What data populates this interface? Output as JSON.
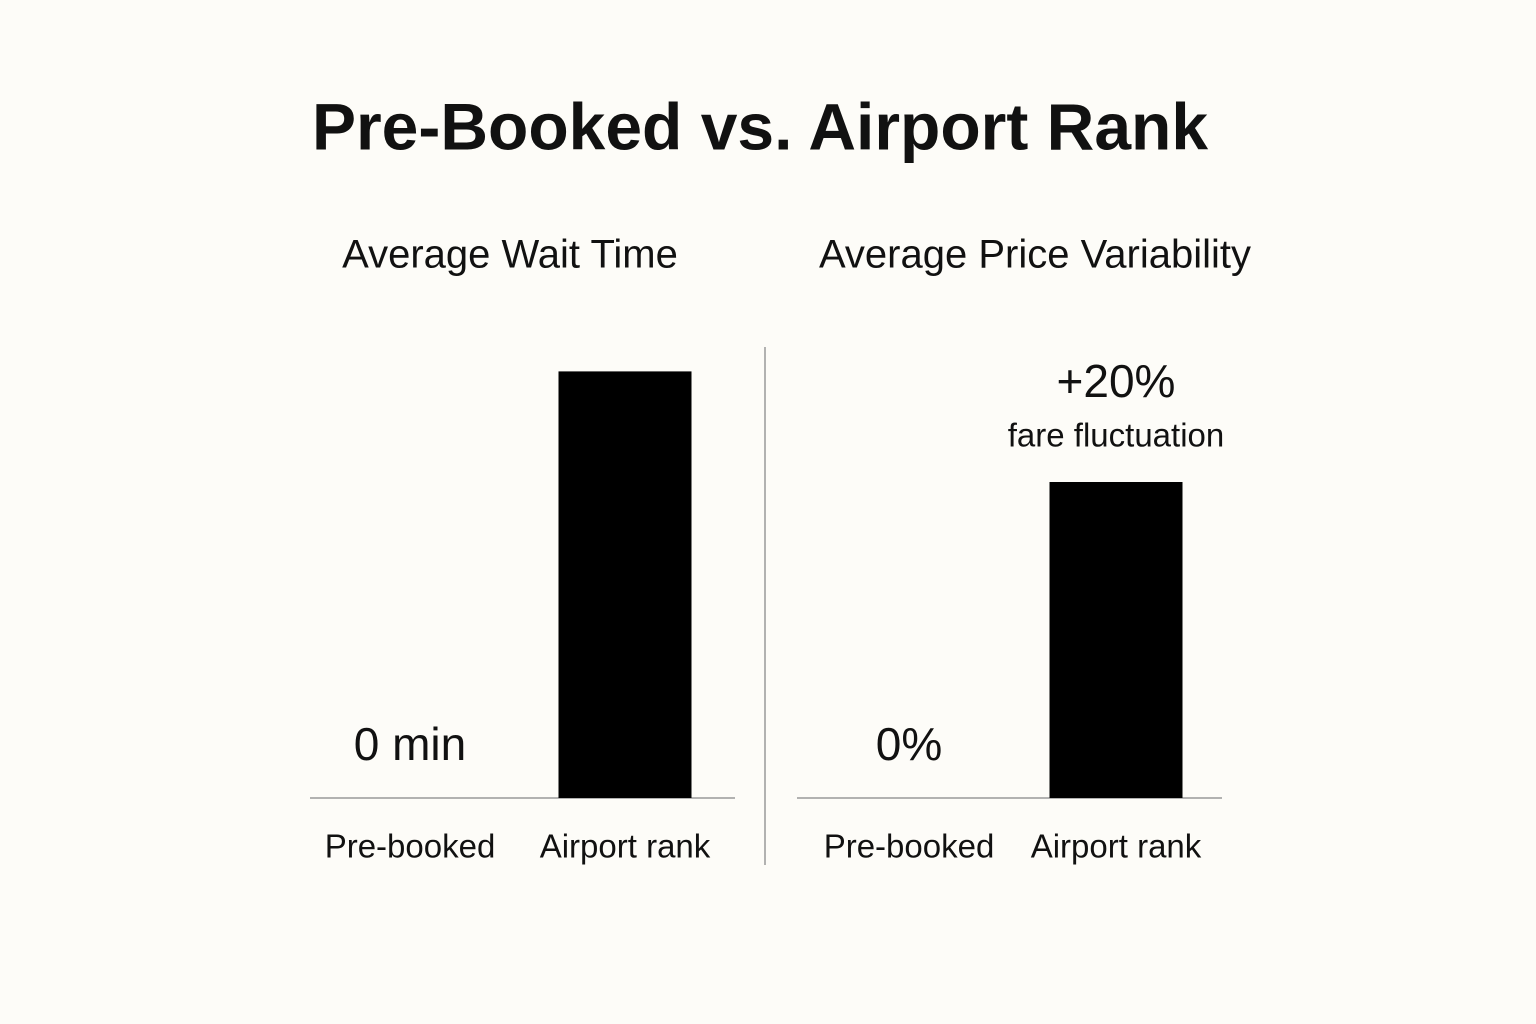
{
  "title": "Pre-Booked vs. Airport Rank",
  "chart_data": [
    {
      "type": "bar",
      "title": "Average Wait Time",
      "categories": [
        "Pre-booked",
        "Airport rank"
      ],
      "values": [
        0,
        27
      ],
      "value_labels": [
        "0 min",
        null
      ],
      "color": "#000000"
    },
    {
      "type": "bar",
      "title": "Average Price Variability",
      "categories": [
        "Pre-booked",
        "Airport rank"
      ],
      "values": [
        0,
        20
      ],
      "value_labels": [
        "0%",
        "+20%"
      ],
      "color": "#000000",
      "annotation": "fare fluctuation"
    }
  ]
}
